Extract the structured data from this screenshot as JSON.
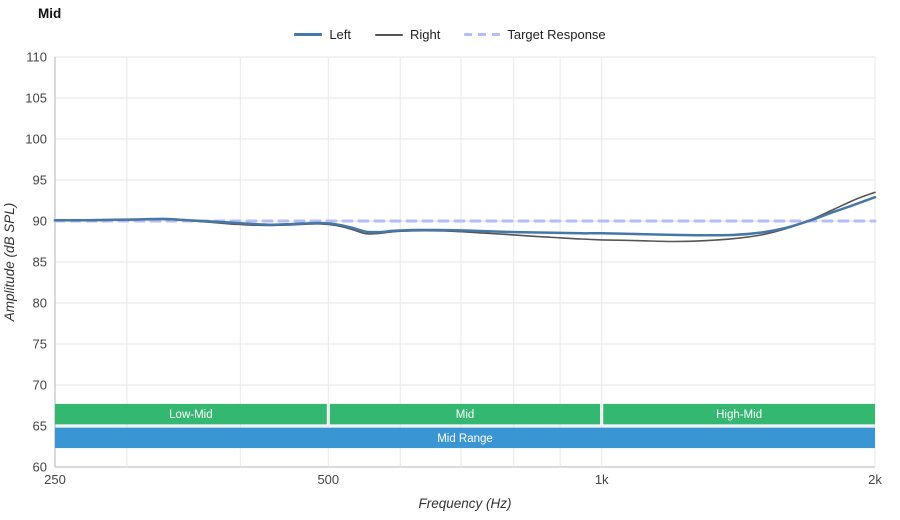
{
  "title": "Mid",
  "legend": {
    "items": [
      {
        "id": "left",
        "label": "Left",
        "style": "solid",
        "color": "#4677a7"
      },
      {
        "id": "right",
        "label": "Right",
        "style": "solid",
        "color": "#555555"
      },
      {
        "id": "target",
        "label": "Target Response",
        "style": "dashed",
        "color": "#b6bdf4"
      }
    ]
  },
  "chart_data": {
    "type": "line",
    "title": "Mid",
    "xlabel": "Frequency (Hz)",
    "ylabel": "Amplitude (dB SPL)",
    "x_scale": "log",
    "xlim": [
      250,
      2000
    ],
    "ylim": [
      60,
      110
    ],
    "grid": true,
    "legend_position": "top",
    "y_ticks": [
      60,
      65,
      70,
      75,
      80,
      85,
      90,
      95,
      100,
      105,
      110
    ],
    "x_ticks": [
      {
        "value": 250,
        "label": "250"
      },
      {
        "value": 500,
        "label": "500"
      },
      {
        "value": 1000,
        "label": "1k"
      },
      {
        "value": 2000,
        "label": "2k"
      }
    ],
    "x_minor_grid": [
      300,
      400,
      500,
      600,
      700,
      800,
      900,
      1000,
      2000
    ],
    "series": [
      {
        "name": "Left",
        "color": "#4677a7",
        "width": 2.5,
        "dash": null,
        "points": [
          [
            250,
            90.1
          ],
          [
            270,
            90.1
          ],
          [
            290,
            90.15
          ],
          [
            310,
            90.2
          ],
          [
            330,
            90.25
          ],
          [
            350,
            90.1
          ],
          [
            370,
            89.95
          ],
          [
            390,
            89.8
          ],
          [
            410,
            89.65
          ],
          [
            430,
            89.55
          ],
          [
            450,
            89.6
          ],
          [
            470,
            89.7
          ],
          [
            490,
            89.75
          ],
          [
            510,
            89.6
          ],
          [
            530,
            89.2
          ],
          [
            550,
            88.7
          ],
          [
            570,
            88.65
          ],
          [
            590,
            88.8
          ],
          [
            620,
            88.9
          ],
          [
            660,
            88.9
          ],
          [
            700,
            88.85
          ],
          [
            750,
            88.75
          ],
          [
            800,
            88.65
          ],
          [
            850,
            88.6
          ],
          [
            900,
            88.55
          ],
          [
            950,
            88.5
          ],
          [
            1000,
            88.5
          ],
          [
            1100,
            88.4
          ],
          [
            1200,
            88.3
          ],
          [
            1300,
            88.25
          ],
          [
            1400,
            88.3
          ],
          [
            1500,
            88.6
          ],
          [
            1600,
            89.2
          ],
          [
            1700,
            90.1
          ],
          [
            1800,
            91.1
          ],
          [
            1900,
            92.0
          ],
          [
            2000,
            92.9
          ]
        ]
      },
      {
        "name": "Right",
        "color": "#555555",
        "width": 1.6,
        "dash": null,
        "points": [
          [
            250,
            90.05
          ],
          [
            270,
            90.05
          ],
          [
            290,
            90.1
          ],
          [
            310,
            90.15
          ],
          [
            330,
            90.2
          ],
          [
            350,
            90.05
          ],
          [
            370,
            89.85
          ],
          [
            390,
            89.65
          ],
          [
            410,
            89.5
          ],
          [
            430,
            89.45
          ],
          [
            450,
            89.5
          ],
          [
            470,
            89.6
          ],
          [
            490,
            89.65
          ],
          [
            510,
            89.45
          ],
          [
            530,
            89.0
          ],
          [
            550,
            88.45
          ],
          [
            570,
            88.5
          ],
          [
            590,
            88.7
          ],
          [
            620,
            88.8
          ],
          [
            660,
            88.8
          ],
          [
            700,
            88.7
          ],
          [
            750,
            88.5
          ],
          [
            800,
            88.3
          ],
          [
            850,
            88.1
          ],
          [
            900,
            87.95
          ],
          [
            950,
            87.8
          ],
          [
            1000,
            87.7
          ],
          [
            1100,
            87.6
          ],
          [
            1200,
            87.5
          ],
          [
            1300,
            87.6
          ],
          [
            1400,
            87.85
          ],
          [
            1500,
            88.3
          ],
          [
            1600,
            89.1
          ],
          [
            1700,
            90.15
          ],
          [
            1800,
            91.4
          ],
          [
            1900,
            92.6
          ],
          [
            2000,
            93.5
          ]
        ]
      },
      {
        "name": "Target Response",
        "color": "#b6bdf4",
        "width": 3,
        "dash": "9 7",
        "points": [
          [
            250,
            90
          ],
          [
            2000,
            90
          ]
        ]
      }
    ],
    "bands": [
      {
        "row": 1,
        "label": "Low-Mid",
        "from": 250,
        "to": 500,
        "color": "#34b871",
        "db_top": 67.7,
        "db_bottom": 65.2
      },
      {
        "row": 1,
        "label": "Mid",
        "from": 500,
        "to": 1000,
        "color": "#34b871",
        "db_top": 67.7,
        "db_bottom": 65.2
      },
      {
        "row": 1,
        "label": "High-Mid",
        "from": 1000,
        "to": 2000,
        "color": "#34b871",
        "db_top": 67.7,
        "db_bottom": 65.2
      },
      {
        "row": 2,
        "label": "Mid Range",
        "from": 250,
        "to": 2000,
        "color": "#3a96d2",
        "db_top": 64.8,
        "db_bottom": 62.3
      }
    ]
  }
}
